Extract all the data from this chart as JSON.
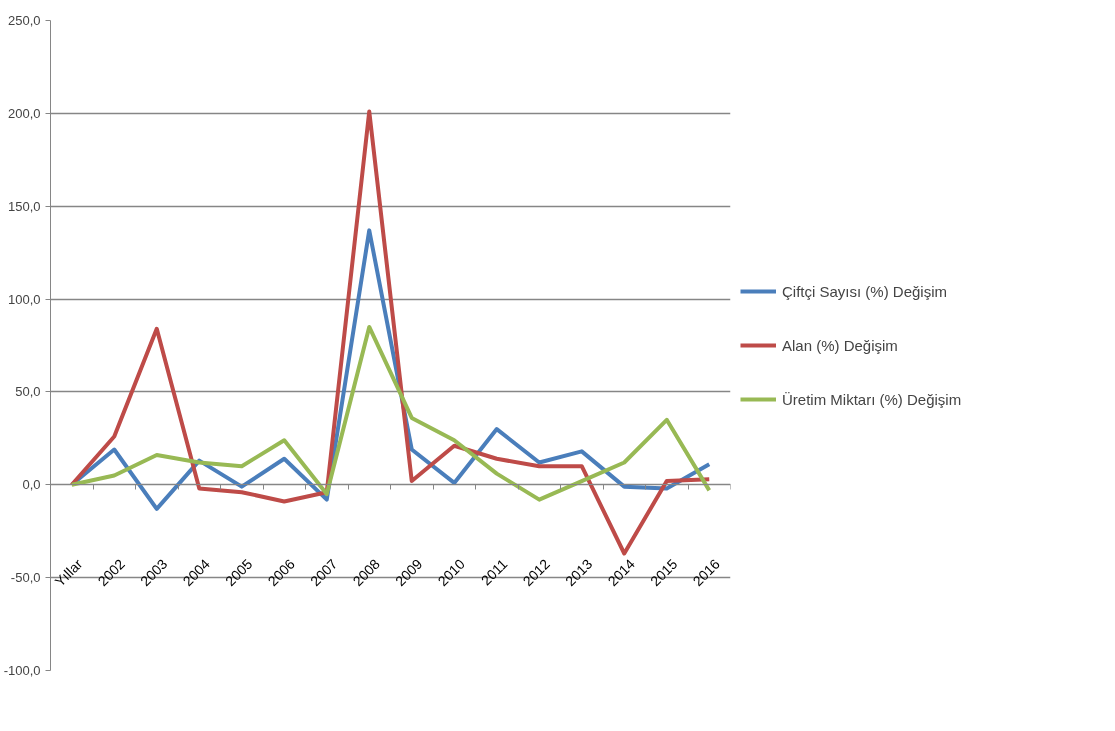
{
  "chart_data": {
    "type": "line",
    "categories": [
      "Yıllar",
      "2002",
      "2003",
      "2004",
      "2005",
      "2006",
      "2007",
      "2008",
      "2009",
      "2010",
      "2011",
      "2012",
      "2013",
      "2014",
      "2015",
      "2016"
    ],
    "series": [
      {
        "name": "Çiftçi Sayısı (%) Değişim",
        "color": "#4a7ebb",
        "values": [
          0,
          19,
          -13,
          13,
          -1,
          14,
          -8,
          137,
          19,
          1,
          30,
          12,
          18,
          -1,
          -2,
          11
        ]
      },
      {
        "name": "Alan (%) Değişim",
        "color": "#be4b48",
        "values": [
          0,
          26,
          84,
          -2,
          -4,
          -9,
          -4,
          201,
          2,
          21,
          14,
          10,
          10,
          -37,
          2,
          3
        ]
      },
      {
        "name": "Üretim Miktarı (%) Değişim",
        "color": "#98b954",
        "values": [
          0,
          5,
          16,
          12,
          10,
          24,
          -5,
          85,
          36,
          24,
          6,
          -8,
          2,
          12,
          35,
          -3
        ]
      }
    ],
    "ylim": [
      -100,
      250
    ],
    "yticks": [
      {
        "value": -100,
        "label": "-100,0"
      },
      {
        "value": -50,
        "label": "-50,0"
      },
      {
        "value": 0,
        "label": "0,0"
      },
      {
        "value": 50,
        "label": "50,0"
      },
      {
        "value": 100,
        "label": "100,0"
      },
      {
        "value": 150,
        "label": "150,0"
      },
      {
        "value": 200,
        "label": "200,0"
      },
      {
        "value": 250,
        "label": "250,0"
      }
    ],
    "grid": "y",
    "legend": "right",
    "marker": "none",
    "line_style": "solid"
  }
}
